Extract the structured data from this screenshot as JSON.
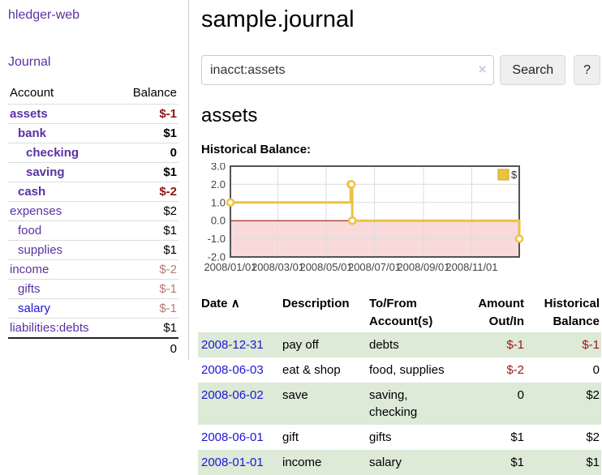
{
  "app_title": "hledger-web",
  "colors": {
    "link_purple": "#5a31a3",
    "link_blue": "#1d14d8",
    "negative_strong": "#8e1515",
    "negative_soft": "#bb7777",
    "row_stripe_green": "#dcead7",
    "chart_gold": "#edc240",
    "chart_negative_fill": "#f9dada",
    "chart_zero_line": "#8b0000"
  },
  "sidebar": {
    "nav_journal": "Journal",
    "accounts": {
      "col_account": "Account",
      "col_balance": "Balance",
      "rows": [
        {
          "name": "assets",
          "indent": 1,
          "bold": true,
          "balance": "$-1",
          "neg": "strong",
          "blue": false
        },
        {
          "name": "bank",
          "indent": 2,
          "bold": true,
          "balance": "$1",
          "neg": null,
          "blue": false
        },
        {
          "name": "checking",
          "indent": 3,
          "bold": true,
          "balance": "0",
          "neg": null,
          "blue": false
        },
        {
          "name": "saving",
          "indent": 3,
          "bold": true,
          "balance": "$1",
          "neg": null,
          "blue": false
        },
        {
          "name": "cash",
          "indent": 2,
          "bold": true,
          "balance": "$-2",
          "neg": "strong",
          "blue": false
        },
        {
          "name": "expenses",
          "indent": 1,
          "bold": false,
          "balance": "$2",
          "neg": null,
          "blue": false
        },
        {
          "name": "food",
          "indent": 2,
          "bold": false,
          "balance": "$1",
          "neg": null,
          "blue": false
        },
        {
          "name": "supplies",
          "indent": 2,
          "bold": false,
          "balance": "$1",
          "neg": null,
          "blue": false
        },
        {
          "name": "income",
          "indent": 1,
          "bold": false,
          "balance": "$-2",
          "neg": "soft",
          "blue": false
        },
        {
          "name": "gifts",
          "indent": 2,
          "bold": false,
          "balance": "$-1",
          "neg": "soft",
          "blue": false
        },
        {
          "name": "salary",
          "indent": 2,
          "bold": false,
          "balance": "$-1",
          "neg": "soft",
          "blue": true
        },
        {
          "name": "liabilities:debts",
          "indent": 1,
          "bold": false,
          "balance": "$1",
          "neg": null,
          "blue": false
        }
      ],
      "total": "0"
    }
  },
  "main": {
    "page_title": "sample.journal",
    "search": {
      "value": "inacct:assets",
      "clear": "×",
      "submit": "Search",
      "help": "?"
    },
    "account_heading": "assets",
    "chart_heading": "Historical Balance:"
  },
  "chart_data": {
    "type": "line",
    "step": true,
    "series": [
      {
        "name": "$",
        "color": "#edc240",
        "points": [
          [
            "2008-01-01",
            1
          ],
          [
            "2008-06-01",
            2
          ],
          [
            "2008-06-02",
            2
          ],
          [
            "2008-06-03",
            0
          ],
          [
            "2008-12-31",
            -1
          ]
        ]
      }
    ],
    "x_ticks": [
      "2008/01/01",
      "2008/03/01",
      "2008/05/01",
      "2008/07/01",
      "2008/09/01",
      "2008/11/01"
    ],
    "y_ticks": [
      3.0,
      2.0,
      1.0,
      0.0,
      -1.0,
      -2.0
    ],
    "y_tick_labels": [
      "3.0",
      "2.0",
      "1.0",
      "0.0",
      "-1.0",
      "-2.0"
    ],
    "xlim": [
      "2008-01-01",
      "2008-12-31"
    ],
    "ylim": [
      -2,
      3
    ],
    "legend": "$",
    "legend_position": "top-right",
    "grid": true,
    "negative_region_fill": "#f9dada",
    "zero_line_color": "#8b0000"
  },
  "register": {
    "headers": {
      "date": "Date",
      "sort_icon": "∧",
      "description": "Description",
      "accounts": "To/From Account(s)",
      "amount": "Amount Out/In",
      "balance": "Historical Balance"
    },
    "rows": [
      {
        "date": "2008-12-31",
        "description": "pay off",
        "accounts": "debts",
        "amount": "$-1",
        "amount_neg": true,
        "balance": "$-1",
        "balance_neg": true
      },
      {
        "date": "2008-06-03",
        "description": "eat & shop",
        "accounts": "food, supplies",
        "amount": "$-2",
        "amount_neg": true,
        "balance": "0",
        "balance_neg": false
      },
      {
        "date": "2008-06-02",
        "description": "save",
        "accounts": "saving, checking",
        "amount": "0",
        "amount_neg": false,
        "balance": "$2",
        "balance_neg": false
      },
      {
        "date": "2008-06-01",
        "description": "gift",
        "accounts": "gifts",
        "amount": "$1",
        "amount_neg": false,
        "balance": "$2",
        "balance_neg": false
      },
      {
        "date": "2008-01-01",
        "description": "income",
        "accounts": "salary",
        "amount": "$1",
        "amount_neg": false,
        "balance": "$1",
        "balance_neg": false
      }
    ]
  }
}
